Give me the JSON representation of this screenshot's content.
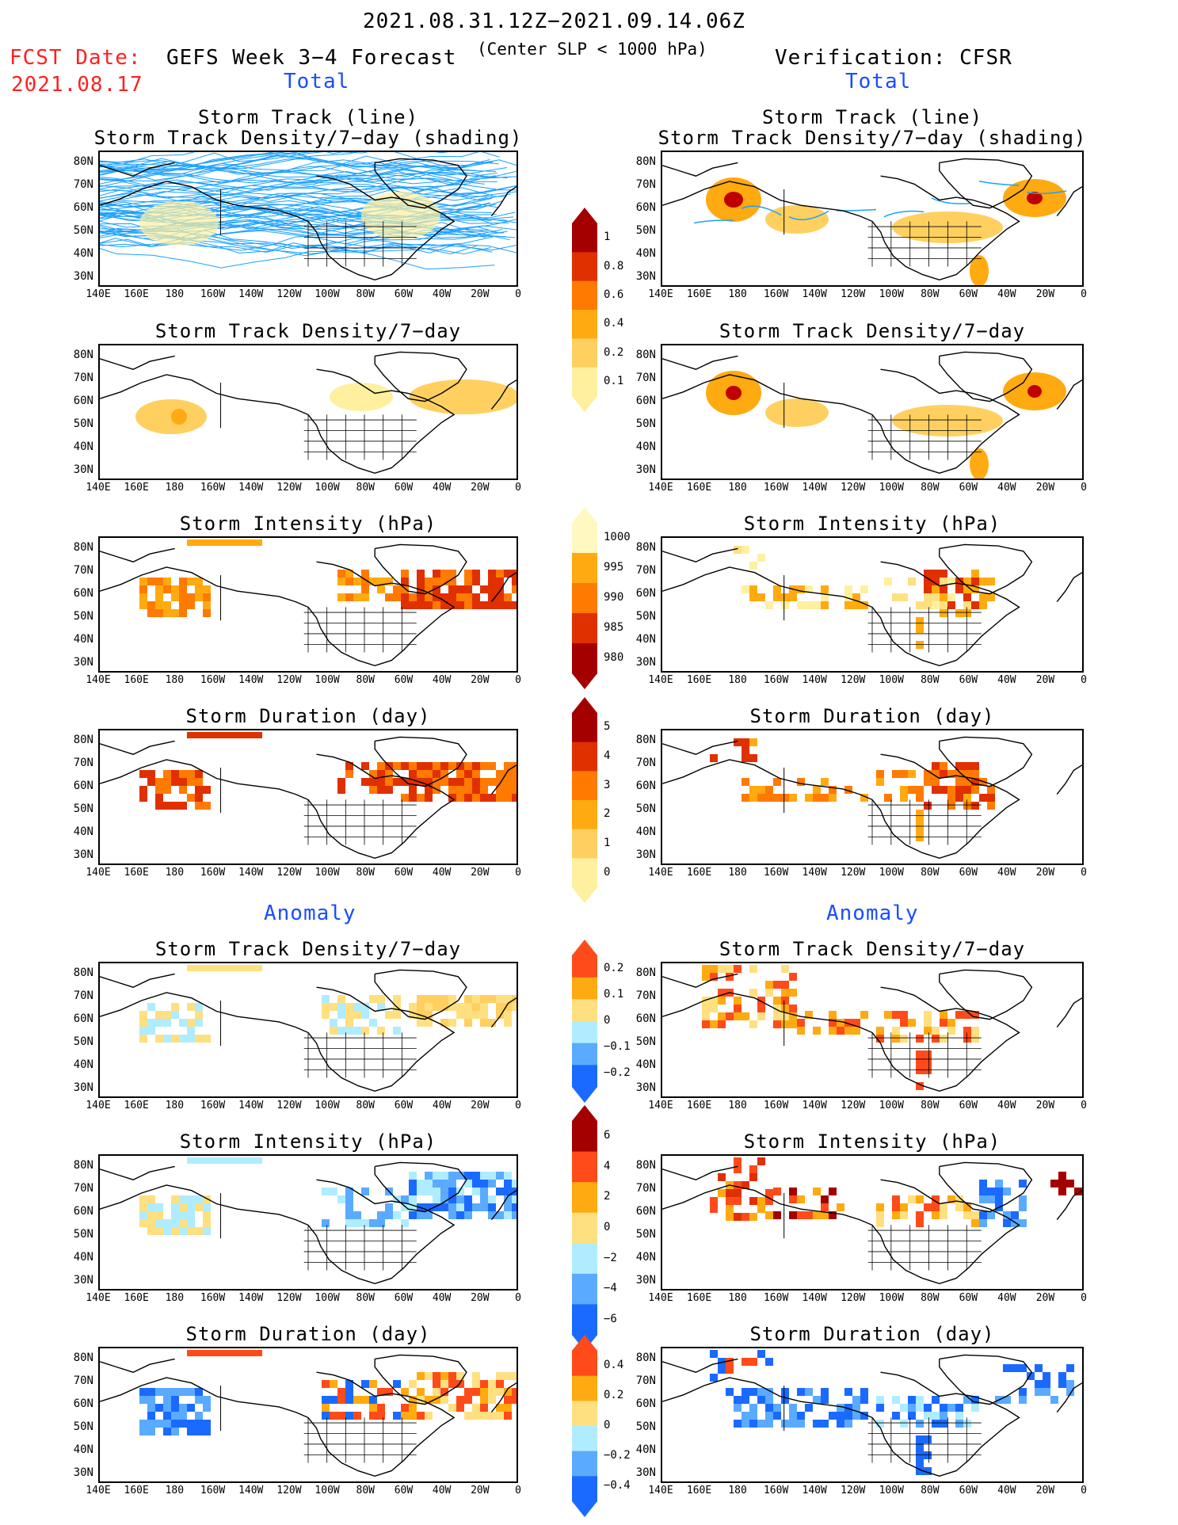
{
  "header": {
    "title": "2021.08.31.12Z−2021.09.14.06Z",
    "subtitle": "(Center SLP < 1000 hPa)",
    "fcst_label": "FCST Date:",
    "fcst_date": "2021.08.17",
    "left_title": "GEFS Week 3−4 Forecast",
    "right_title": "Verification: CFSR",
    "total_left": "Total",
    "total_right": "Total",
    "anomaly_left": "Anomaly",
    "anomaly_right": "Anomaly"
  },
  "x_ticks": [
    "140E",
    "160E",
    "180",
    "160W",
    "140W",
    "120W",
    "100W",
    "80W",
    "60W",
    "40W",
    "20W",
    "0"
  ],
  "y_ticks": [
    "80N",
    "70N",
    "60N",
    "50N",
    "40N",
    "30N"
  ],
  "panels": {
    "track_line_title1": "Storm Track (line)",
    "track_line_title2": "Storm Track Density/7−day (shading)",
    "density": "Storm Track Density/7−day",
    "intensity": "Storm Intensity (hPa)",
    "duration": "Storm Duration (day)"
  },
  "colorbars": {
    "density_total": {
      "labels": [
        "1",
        "0.8",
        "0.6",
        "0.4",
        "0.2",
        "0.1"
      ],
      "colors": [
        "#a50000",
        "#e03000",
        "#ff7a00",
        "#ffaa10",
        "#ffd060",
        "#fff0a0"
      ]
    },
    "intensity_total": {
      "labels": [
        "1000",
        "995",
        "990",
        "985",
        "980"
      ],
      "colors": [
        "#fff8c0",
        "#ffaa10",
        "#ff7a00",
        "#e03000",
        "#a50000"
      ]
    },
    "duration_total": {
      "labels": [
        "5",
        "4",
        "3",
        "2",
        "1",
        "0"
      ],
      "colors": [
        "#a50000",
        "#e03000",
        "#ff7a00",
        "#ffaa10",
        "#ffd060",
        "#fff0a0"
      ]
    },
    "density_anom": {
      "labels": [
        "0.2",
        "0.1",
        "0",
        "−0.1",
        "−0.2"
      ],
      "colors": [
        "#ff4a1a",
        "#ffaa10",
        "#ffe080",
        "#b0ecff",
        "#5aaaff",
        "#1a6aff"
      ]
    },
    "intensity_anom": {
      "labels": [
        "6",
        "4",
        "2",
        "0",
        "−2",
        "−4",
        "−6"
      ],
      "colors": [
        "#a50000",
        "#ff4a1a",
        "#ffaa10",
        "#ffe080",
        "#b0ecff",
        "#5aaaff",
        "#1a6aff"
      ]
    },
    "duration_anom": {
      "labels": [
        "0.4",
        "0.2",
        "0",
        "−0.2",
        "−0.4"
      ],
      "colors": [
        "#ff4a1a",
        "#ffaa10",
        "#ffe080",
        "#b0ecff",
        "#5aaaff",
        "#1a6aff"
      ]
    }
  },
  "chart_data": {
    "type": "heatmap",
    "title": "2021.08.31.12Z−2021.09.14.06Z",
    "grid": "lon 140E–0 (20° steps), lat 25N–85N",
    "regions": {
      "forecast_total_density": [
        {
          "lon": 180,
          "lat": 57,
          "value": 0.3
        },
        {
          "lon": -80,
          "lat": 62,
          "value": 0.2
        },
        {
          "lon": -30,
          "lat": 62,
          "value": 0.3
        }
      ],
      "verification_total_density": [
        {
          "lon": 180,
          "lat": 64,
          "value": 1.0
        },
        {
          "lon": -30,
          "lat": 64,
          "value": 0.9
        },
        {
          "lon": -160,
          "lat": 56,
          "value": 0.5
        },
        {
          "lon": -60,
          "lat": 52,
          "value": 0.5
        }
      ]
    }
  }
}
